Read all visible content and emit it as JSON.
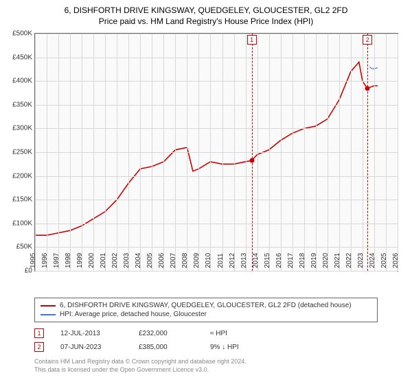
{
  "title_line1": "6, DISHFORTH DRIVE KINGSWAY, QUEDGELEY, GLOUCESTER, GL2 2FD",
  "title_line2": "Price paid vs. HM Land Registry's House Price Index (HPI)",
  "x_axis": {
    "min_year": 1995,
    "max_year": 2026,
    "ticks": [
      1995,
      1996,
      1997,
      1998,
      1999,
      2000,
      2001,
      2002,
      2003,
      2004,
      2005,
      2006,
      2007,
      2008,
      2009,
      2010,
      2011,
      2012,
      2013,
      2014,
      2015,
      2016,
      2017,
      2018,
      2019,
      2020,
      2021,
      2022,
      2023,
      2024,
      2025,
      2026
    ],
    "major_every": 1,
    "label_fontsize": 10,
    "label_color": "#333333"
  },
  "y_axis": {
    "min": 0,
    "max": 500000,
    "step": 50000,
    "labels": [
      "£0",
      "£50K",
      "£100K",
      "£150K",
      "£200K",
      "£250K",
      "£300K",
      "£350K",
      "£400K",
      "£450K",
      "£500K"
    ],
    "label_fontsize": 10,
    "label_color": "#333333"
  },
  "plot": {
    "background": "#fafafa",
    "border_color": "#666666",
    "grid_color": "#d8d8d8"
  },
  "series": [
    {
      "name": "6, DISHFORTH DRIVE KINGSWAY, QUEDGELEY, GLOUCESTER, GL2 2FD (detached house)",
      "color": "#cc0000",
      "width": 1.6,
      "points": [
        [
          1995,
          75000
        ],
        [
          1996,
          75000
        ],
        [
          1997,
          80000
        ],
        [
          1998,
          85000
        ],
        [
          1999,
          95000
        ],
        [
          2000,
          110000
        ],
        [
          2001,
          125000
        ],
        [
          2002,
          150000
        ],
        [
          2003,
          185000
        ],
        [
          2004,
          215000
        ],
        [
          2005,
          220000
        ],
        [
          2006,
          230000
        ],
        [
          2007,
          255000
        ],
        [
          2008,
          260000
        ],
        [
          2008.5,
          210000
        ],
        [
          2009,
          215000
        ],
        [
          2010,
          230000
        ],
        [
          2011,
          225000
        ],
        [
          2012,
          225000
        ],
        [
          2013,
          230000
        ],
        [
          2013.5,
          232000
        ],
        [
          2014,
          245000
        ],
        [
          2015,
          255000
        ],
        [
          2016,
          275000
        ],
        [
          2017,
          290000
        ],
        [
          2018,
          300000
        ],
        [
          2019,
          305000
        ],
        [
          2020,
          320000
        ],
        [
          2021,
          360000
        ],
        [
          2022,
          420000
        ],
        [
          2022.7,
          440000
        ],
        [
          2023,
          400000
        ],
        [
          2023.4,
          385000
        ],
        [
          2024,
          390000
        ],
        [
          2024.3,
          390000
        ]
      ]
    },
    {
      "name": "HPI: Average price, detached house, Gloucester",
      "color": "#4477cc",
      "width": 1.2,
      "points": [
        [
          2023.6,
          430000
        ],
        [
          2023.8,
          426000
        ],
        [
          2024.0,
          426000
        ],
        [
          2024.3,
          428000
        ]
      ]
    }
  ],
  "events": [
    {
      "idx": "1",
      "year": 2013.53,
      "value": 232000,
      "date": "12-JUL-2013",
      "price": "£232,000",
      "note": "≈ HPI"
    },
    {
      "idx": "2",
      "year": 2023.43,
      "value": 385000,
      "date": "07-JUN-2023",
      "price": "£385,000",
      "note": "9% ↓ HPI"
    }
  ],
  "event_style": {
    "line_color": "#cc0000",
    "box_border": "#cc0000",
    "box_bg": "#ffffff",
    "dot_color": "#cc0000"
  },
  "legend": {
    "border_color": "#666666",
    "fontsize": 10,
    "text_color": "#333333"
  },
  "footer_line1": "Contains HM Land Registry data © Crown copyright and database right 2024.",
  "footer_line2": "This data is licensed under the Open Government Licence v3.0.",
  "footer_color": "#888888",
  "footer_fontsize": 9
}
